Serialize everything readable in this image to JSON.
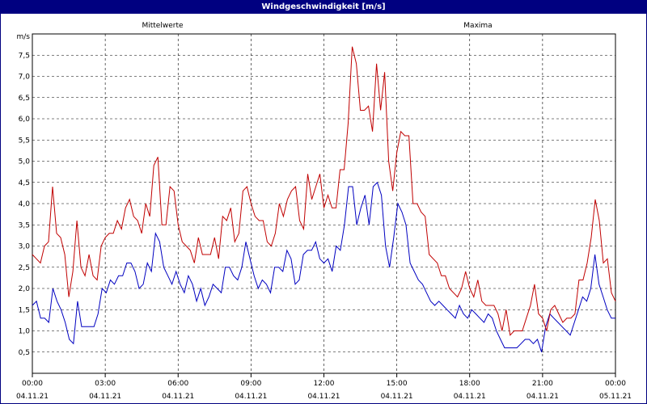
{
  "window": {
    "title": "Windgeschwindigkeit [m/s]"
  },
  "chart_data": {
    "type": "line",
    "title": "Windgeschwindigkeit [m/s]",
    "ylabel": "m/s",
    "ylim": [
      0,
      8
    ],
    "yticks": [
      "0,5",
      "1,0",
      "1,5",
      "2,0",
      "2,5",
      "3,0",
      "3,5",
      "4,0",
      "4,5",
      "5,0",
      "5,5",
      "6,0",
      "6,5",
      "7,0",
      "7,5"
    ],
    "xlim": [
      0,
      24
    ],
    "xticks": [
      {
        "time": "00:00",
        "date": "04.11.21"
      },
      {
        "time": "03:00",
        "date": "04.11.21"
      },
      {
        "time": "06:00",
        "date": "04.11.21"
      },
      {
        "time": "09:00",
        "date": "04.11.21"
      },
      {
        "time": "12:00",
        "date": "04.11.21"
      },
      {
        "time": "15:00",
        "date": "04.11.21"
      },
      {
        "time": "18:00",
        "date": "04.11.21"
      },
      {
        "time": "21:00",
        "date": "04.11.21"
      },
      {
        "time": "00:00",
        "date": "05.11.21"
      }
    ],
    "grid": true,
    "series": [
      {
        "name": "Mittelwerte",
        "color": "#0000c0",
        "values": [
          1.6,
          1.7,
          1.3,
          1.3,
          1.2,
          2.0,
          1.7,
          1.5,
          1.2,
          0.8,
          0.7,
          1.7,
          1.1,
          1.1,
          1.1,
          1.1,
          1.4,
          2.0,
          1.9,
          2.2,
          2.1,
          2.3,
          2.3,
          2.6,
          2.6,
          2.4,
          2.0,
          2.1,
          2.6,
          2.4,
          3.3,
          3.1,
          2.5,
          2.3,
          2.1,
          2.4,
          2.1,
          1.9,
          2.3,
          2.1,
          1.7,
          2.0,
          1.6,
          1.8,
          2.1,
          2.0,
          1.9,
          2.5,
          2.5,
          2.3,
          2.2,
          2.5,
          3.1,
          2.7,
          2.3,
          2.0,
          2.2,
          2.1,
          1.9,
          2.5,
          2.5,
          2.4,
          2.9,
          2.7,
          2.1,
          2.2,
          2.8,
          2.9,
          2.9,
          3.1,
          2.7,
          2.6,
          2.7,
          2.4,
          3.0,
          2.9,
          3.5,
          4.4,
          4.4,
          3.5,
          3.9,
          4.2,
          3.5,
          4.4,
          4.5,
          4.2,
          3.0,
          2.5,
          3.2,
          4.0,
          3.8,
          3.5,
          2.6,
          2.4,
          2.2,
          2.1,
          1.9,
          1.7,
          1.6,
          1.7,
          1.6,
          1.5,
          1.4,
          1.3,
          1.6,
          1.4,
          1.3,
          1.5,
          1.4,
          1.3,
          1.2,
          1.4,
          1.3,
          1.0,
          0.8,
          0.6,
          0.6,
          0.6,
          0.6,
          0.7,
          0.8,
          0.8,
          0.7,
          0.8,
          0.5,
          1.1,
          1.4,
          1.3,
          1.2,
          1.1,
          1.0,
          0.9,
          1.2,
          1.5,
          1.8,
          1.7,
          2.0,
          2.8,
          2.1,
          1.8,
          1.5,
          1.3,
          1.3
        ]
      },
      {
        "name": "Maxima",
        "color": "#c00000",
        "values": [
          2.8,
          2.7,
          2.6,
          3.0,
          3.1,
          4.4,
          3.3,
          3.2,
          2.8,
          1.8,
          2.4,
          3.6,
          2.5,
          2.3,
          2.8,
          2.3,
          2.2,
          3.0,
          3.2,
          3.3,
          3.3,
          3.6,
          3.4,
          3.9,
          4.1,
          3.7,
          3.6,
          3.3,
          4.0,
          3.7,
          4.9,
          5.1,
          3.5,
          3.5,
          4.4,
          4.3,
          3.5,
          3.1,
          3.0,
          2.9,
          2.6,
          3.2,
          2.8,
          2.8,
          2.8,
          3.2,
          2.7,
          3.7,
          3.6,
          3.9,
          3.1,
          3.3,
          4.3,
          4.4,
          4.0,
          3.7,
          3.6,
          3.6,
          3.1,
          3.0,
          3.3,
          4.0,
          3.7,
          4.1,
          4.3,
          4.4,
          3.6,
          3.4,
          4.7,
          4.1,
          4.4,
          4.7,
          3.9,
          4.2,
          3.9,
          3.9,
          4.8,
          4.8,
          5.9,
          7.7,
          7.3,
          6.2,
          6.2,
          6.3,
          5.7,
          7.3,
          6.2,
          7.1,
          5.0,
          4.3,
          5.2,
          5.7,
          5.6,
          5.6,
          4.0,
          4.0,
          3.8,
          3.7,
          2.8,
          2.7,
          2.6,
          2.3,
          2.3,
          2.0,
          1.9,
          1.8,
          2.0,
          2.4,
          2.0,
          1.8,
          2.2,
          1.7,
          1.6,
          1.6,
          1.6,
          1.4,
          1.0,
          1.5,
          0.9,
          1.0,
          1.0,
          1.0,
          1.3,
          1.6,
          2.1,
          1.4,
          1.3,
          1.0,
          1.5,
          1.6,
          1.4,
          1.2,
          1.3,
          1.3,
          1.4,
          2.2,
          2.2,
          2.6,
          3.2,
          4.1,
          3.6,
          2.6,
          2.7,
          1.9,
          1.7
        ]
      }
    ]
  }
}
